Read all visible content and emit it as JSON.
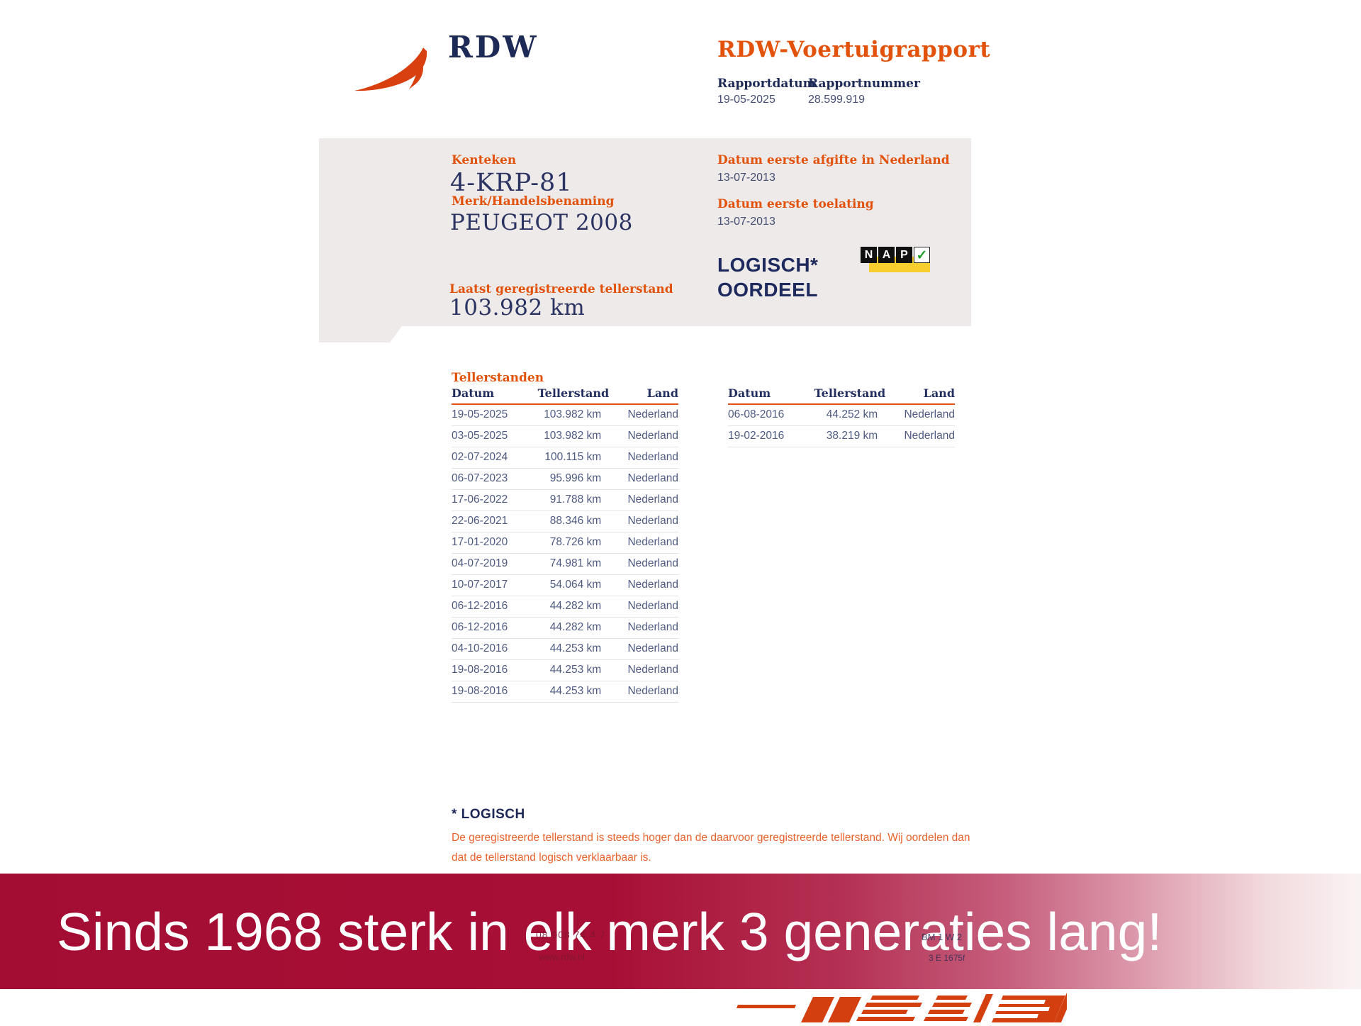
{
  "header": {
    "logo_text": "RDW",
    "report_title": "RDW-Voertuigrapport",
    "report_date_label": "Rapportdatum",
    "report_date": "19-05-2025",
    "report_number_label": "Rapportnummer",
    "report_number": "28.599.919"
  },
  "vehicle": {
    "license_label": "Kenteken",
    "license": "4-KRP-81",
    "brand_label": "Merk/Handelsbenaming",
    "brand": "PEUGEOT 2008",
    "odometer_label": "Laatst geregistreerde tellerstand",
    "odometer": "103.982 km",
    "first_issue_label": "Datum eerste afgifte in Nederland",
    "first_issue": "13-07-2013",
    "first_admission_label": "Datum eerste toelating",
    "first_admission": "13-07-2013",
    "verdict_line1": "LOGISCH*",
    "verdict_line2": "OORDEEL",
    "nap_letters": [
      "N",
      "A",
      "P"
    ],
    "nap_check": "✓"
  },
  "tables": {
    "section_title": "Tellerstanden",
    "headers": [
      "Datum",
      "Tellerstand",
      "Land"
    ],
    "left_rows": [
      [
        "19-05-2025",
        "103.982 km",
        "Nederland"
      ],
      [
        "03-05-2025",
        "103.982 km",
        "Nederland"
      ],
      [
        "02-07-2024",
        "100.115 km",
        "Nederland"
      ],
      [
        "06-07-2023",
        "95.996 km",
        "Nederland"
      ],
      [
        "17-06-2022",
        "91.788 km",
        "Nederland"
      ],
      [
        "22-06-2021",
        "88.346 km",
        "Nederland"
      ],
      [
        "17-01-2020",
        "78.726 km",
        "Nederland"
      ],
      [
        "04-07-2019",
        "74.981 km",
        "Nederland"
      ],
      [
        "10-07-2017",
        "54.064 km",
        "Nederland"
      ],
      [
        "06-12-2016",
        "44.282 km",
        "Nederland"
      ],
      [
        "06-12-2016",
        "44.282 km",
        "Nederland"
      ],
      [
        "04-10-2016",
        "44.253 km",
        "Nederland"
      ],
      [
        "19-08-2016",
        "44.253 km",
        "Nederland"
      ],
      [
        "19-08-2016",
        "44.253 km",
        "Nederland"
      ]
    ],
    "right_rows": [
      [
        "06-08-2016",
        "44.252 km",
        "Nederland"
      ],
      [
        "19-02-2016",
        "38.219 km",
        "Nederland"
      ]
    ]
  },
  "footnote": {
    "title": "* LOGISCH",
    "line1": "De geregistreerde tellerstand is steeds hoger dan de daarvoor geregistreerde tellerstand. Wij oordelen dan",
    "line2": "dat de tellerstand logisch verklaarbaar is."
  },
  "banner": {
    "text": "Sinds 1968 sterk in elk merk 3 generaties lang!",
    "fragments": {
      "phone": "08 008 74 4 7",
      "website": "www.rdw.nl",
      "code1": "BM 1 W 2",
      "code2": "3 E 1675f"
    }
  },
  "colors": {
    "accent_orange": "#e2520a",
    "navy": "#1e2a56",
    "card_grey": "#edeae9",
    "table_text": "#4e5a82",
    "banner_crimson": "#a30d33",
    "nap_yellow": "#f8ce2e",
    "dealer_logo_orange": "#d43f10"
  }
}
